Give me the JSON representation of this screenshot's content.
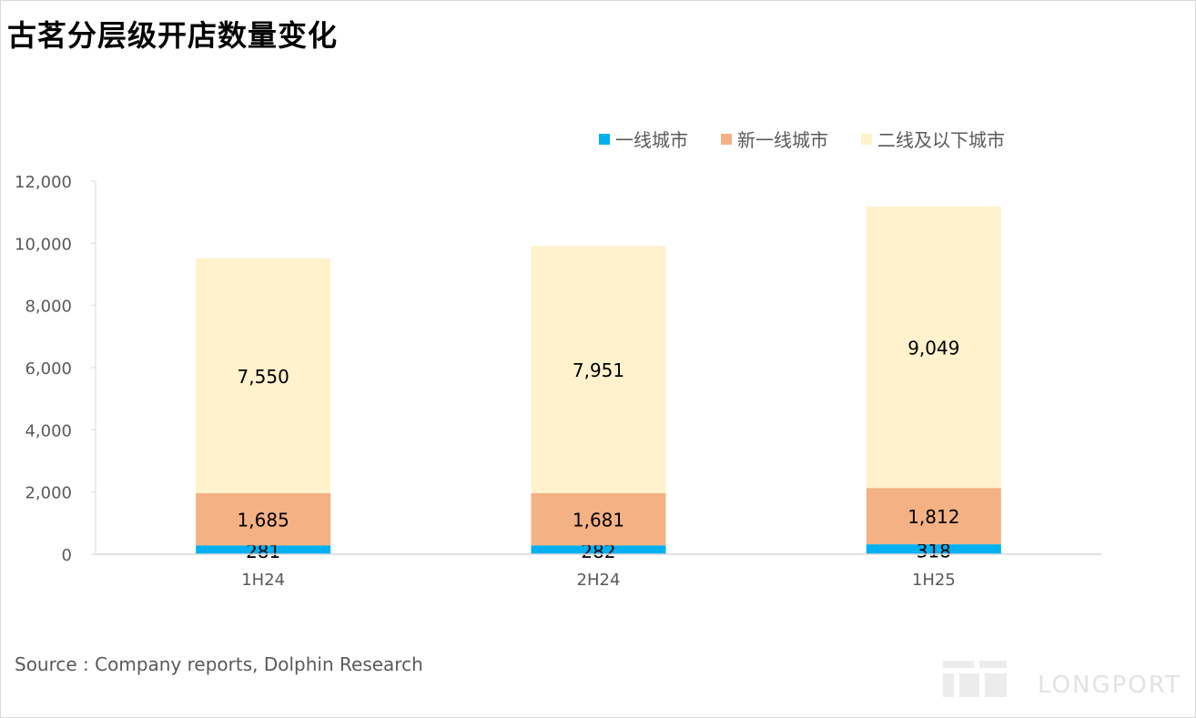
{
  "title": "古茗分层级开店数量变化",
  "source": "Source : Company reports, Dolphin Research",
  "brand": "LONGPORT",
  "chart_data": {
    "type": "bar",
    "stacked": true,
    "categories": [
      "1H24",
      "2H24",
      "1H25"
    ],
    "series": [
      {
        "name": "一线城市",
        "color": "#00b0f0",
        "values": [
          281,
          282,
          318
        ],
        "labels": [
          "281",
          "282",
          "318"
        ]
      },
      {
        "name": "新一线城市",
        "color": "#f4b183",
        "values": [
          1685,
          1681,
          1812
        ],
        "labels": [
          "1,685",
          "1,681",
          "1,812"
        ]
      },
      {
        "name": "二线及以下城市",
        "color": "#fff2cc",
        "values": [
          7550,
          7951,
          9049
        ],
        "labels": [
          "7,550",
          "7,951",
          "9,049"
        ]
      }
    ],
    "ylim": [
      0,
      12000
    ],
    "yticks": [
      0,
      2000,
      4000,
      6000,
      8000,
      10000,
      12000
    ],
    "ytick_labels": [
      "0",
      "2,000",
      "4,000",
      "6,000",
      "8,000",
      "10,000",
      "12,000"
    ],
    "legend_position": "top-right",
    "grid": false
  }
}
